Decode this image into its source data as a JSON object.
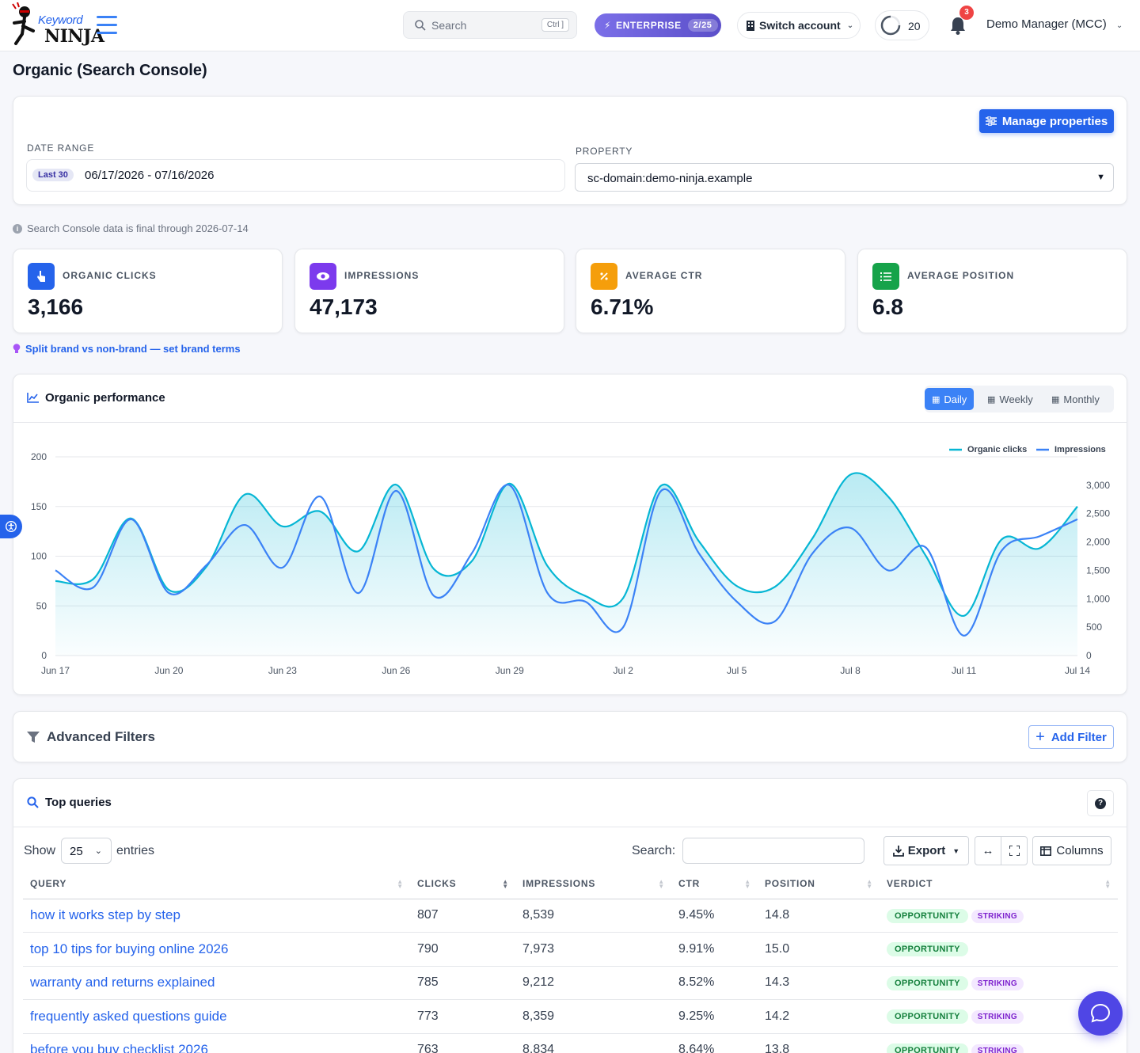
{
  "header": {
    "logo_top": "Keyword",
    "logo_bottom": "NINJA",
    "search_placeholder": "Search",
    "search_shortcut": "Ctrl ]",
    "plan_label": "ENTERPRISE",
    "plan_usage": "2/25",
    "switch_account_label": "Switch account",
    "credits": "20",
    "notifications_count": "3",
    "user_name": "Demo Manager (MCC)"
  },
  "page": {
    "title": "Organic (Search Console)"
  },
  "filters": {
    "manage_label": "Manage properties",
    "date_range_label": "DATE RANGE",
    "date_preset": "Last 30",
    "date_value": "06/17/2026 - 07/16/2026",
    "property_label": "PROPERTY",
    "property_value": "sc-domain:demo-ninja.example"
  },
  "notice": "Search Console data is final through 2026-07-14",
  "kpis": [
    {
      "label": "ORGANIC CLICKS",
      "value": "3,166",
      "color": "#2563eb",
      "icon": "pointer-icon"
    },
    {
      "label": "IMPRESSIONS",
      "value": "47,173",
      "color": "#7c3aed",
      "icon": "eye-icon"
    },
    {
      "label": "AVERAGE CTR",
      "value": "6.71%",
      "color": "#f59e0b",
      "icon": "percent-icon"
    },
    {
      "label": "AVERAGE POSITION",
      "value": "6.8",
      "color": "#16a34a",
      "icon": "list-ordered-icon"
    }
  ],
  "brand_link": "Split brand vs non-brand — set brand terms",
  "chart": {
    "title": "Organic performance",
    "granularity": [
      "Daily",
      "Weekly",
      "Monthly"
    ],
    "active_granularity": "Daily"
  },
  "chart_data": {
    "type": "line",
    "x": [
      "Jun 17",
      "Jun 18",
      "Jun 19",
      "Jun 20",
      "Jun 21",
      "Jun 22",
      "Jun 23",
      "Jun 24",
      "Jun 25",
      "Jun 26",
      "Jun 27",
      "Jun 28",
      "Jun 29",
      "Jun 30",
      "Jul 1",
      "Jul 2",
      "Jul 3",
      "Jul 4",
      "Jul 5",
      "Jul 6",
      "Jul 7",
      "Jul 8",
      "Jul 9",
      "Jul 10",
      "Jul 11",
      "Jul 12",
      "Jul 13",
      "Jul 14"
    ],
    "x_ticks": [
      "Jun 17",
      "Jun 20",
      "Jun 23",
      "Jun 26",
      "Jun 29",
      "Jul 2",
      "Jul 5",
      "Jul 8",
      "Jul 11",
      "Jul 14"
    ],
    "series": [
      {
        "name": "Organic clicks",
        "axis": "left",
        "color": "#06b6d4",
        "fill": true,
        "values": [
          75,
          77,
          138,
          66,
          90,
          162,
          130,
          145,
          105,
          172,
          87,
          95,
          173,
          90,
          60,
          58,
          171,
          115,
          70,
          69,
          118,
          182,
          160,
          100,
          40,
          117,
          108,
          150
        ]
      },
      {
        "name": "Impressions",
        "axis": "right",
        "color": "#3b82f6",
        "fill": false,
        "values": [
          1500,
          1200,
          2400,
          1100,
          1600,
          2300,
          1550,
          2800,
          1100,
          2900,
          1050,
          1800,
          3000,
          1100,
          950,
          500,
          2900,
          1800,
          950,
          600,
          1800,
          2250,
          1500,
          1900,
          350,
          1850,
          2100,
          2400
        ]
      }
    ],
    "y_left": {
      "ticks": [
        0,
        50,
        100,
        150,
        200
      ],
      "range": [
        0,
        200
      ]
    },
    "y_right": {
      "ticks": [
        "0",
        "500",
        "1,000",
        "1,500",
        "2,000",
        "2,500",
        "3,000"
      ],
      "range": [
        0,
        3500
      ]
    },
    "grid": true,
    "legend": "top-right"
  },
  "advanced_filters": {
    "title": "Advanced Filters",
    "add_label": "Add Filter"
  },
  "top_queries": {
    "title": "Top queries",
    "show_label": "Show",
    "entries_value": "25",
    "entries_label": "entries",
    "search_label": "Search:",
    "export_label": "Export",
    "columns_label": "Columns",
    "columns": [
      "QUERY",
      "CLICKS",
      "IMPRESSIONS",
      "CTR",
      "POSITION",
      "VERDICT"
    ],
    "rows": [
      {
        "query": "how it works step by step",
        "clicks": "807",
        "impressions": "8,539",
        "ctr": "9.45%",
        "position": "14.8",
        "verdict": "OPPORTUNITY",
        "tag": "STRIKING"
      },
      {
        "query": "top 10 tips for buying online 2026",
        "clicks": "790",
        "impressions": "7,973",
        "ctr": "9.91%",
        "position": "15.0",
        "verdict": "OPPORTUNITY",
        "tag": ""
      },
      {
        "query": "warranty and returns explained",
        "clicks": "785",
        "impressions": "9,212",
        "ctr": "8.52%",
        "position": "14.3",
        "verdict": "OPPORTUNITY",
        "tag": "STRIKING"
      },
      {
        "query": "frequently asked questions guide",
        "clicks": "773",
        "impressions": "8,359",
        "ctr": "9.25%",
        "position": "14.2",
        "verdict": "OPPORTUNITY",
        "tag": "STRIKING"
      },
      {
        "query": "before you buy checklist 2026",
        "clicks": "763",
        "impressions": "8,834",
        "ctr": "8.64%",
        "position": "13.8",
        "verdict": "OPPORTUNITY",
        "tag": "STRIKING"
      }
    ]
  }
}
